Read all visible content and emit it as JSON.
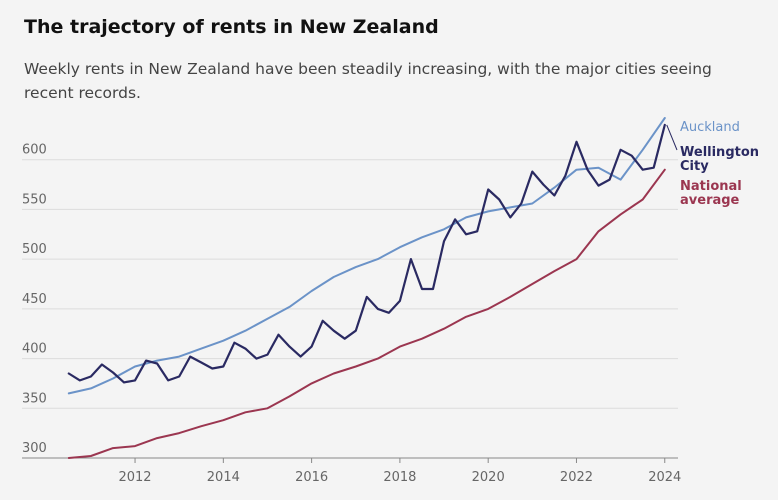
{
  "header": {
    "title": "The trajectory of rents in New Zealand",
    "subtitle": "Weekly rents in New Zealand have been steadily increasing, with the major cities seeing recent records."
  },
  "colors": {
    "auckland": "#6b93c8",
    "wellington": "#2a2a62",
    "national": "#9b3650",
    "grid": "#dcdcdc",
    "axis": "#666666"
  },
  "chart_data": {
    "type": "line",
    "title": "The trajectory of rents in New Zealand",
    "xlabel": "",
    "ylabel": "",
    "xlim": [
      2010.3,
      2024.3
    ],
    "ylim": [
      300,
      650
    ],
    "y_ticks": [
      300,
      350,
      400,
      450,
      500,
      550,
      600
    ],
    "x_ticks": [
      2012,
      2014,
      2016,
      2018,
      2020,
      2022,
      2024
    ],
    "grid": true,
    "legend": "labels at line ends (right)",
    "series": [
      {
        "name": "Auckland",
        "color": "#6b93c8",
        "x": [
          2010.5,
          2011,
          2011.5,
          2012,
          2012.5,
          2013,
          2013.5,
          2014,
          2014.5,
          2015,
          2015.5,
          2016,
          2016.5,
          2017,
          2017.5,
          2018,
          2018.5,
          2019,
          2019.5,
          2020,
          2020.5,
          2021,
          2021.5,
          2022,
          2022.5,
          2023,
          2023.5,
          2024
        ],
        "y": [
          365,
          370,
          380,
          392,
          398,
          402,
          410,
          418,
          428,
          440,
          452,
          468,
          482,
          492,
          500,
          512,
          522,
          530,
          542,
          548,
          552,
          556,
          572,
          590,
          592,
          580,
          610,
          642
        ]
      },
      {
        "name": "Wellington City",
        "color": "#2a2a62",
        "x": [
          2010.5,
          2010.75,
          2011,
          2011.25,
          2011.5,
          2011.75,
          2012,
          2012.25,
          2012.5,
          2012.75,
          2013,
          2013.25,
          2013.5,
          2013.75,
          2014,
          2014.25,
          2014.5,
          2014.75,
          2015,
          2015.25,
          2015.5,
          2015.75,
          2016,
          2016.25,
          2016.5,
          2016.75,
          2017,
          2017.25,
          2017.5,
          2017.75,
          2018,
          2018.25,
          2018.5,
          2018.75,
          2019,
          2019.25,
          2019.5,
          2019.75,
          2020,
          2020.25,
          2020.5,
          2020.75,
          2021,
          2021.25,
          2021.5,
          2021.75,
          2022,
          2022.25,
          2022.5,
          2022.75,
          2023,
          2023.25,
          2023.5,
          2023.75,
          2024
        ],
        "y": [
          385,
          378,
          382,
          394,
          386,
          376,
          378,
          398,
          395,
          378,
          382,
          402,
          396,
          390,
          392,
          416,
          410,
          400,
          404,
          424,
          412,
          402,
          412,
          438,
          428,
          420,
          428,
          462,
          450,
          446,
          458,
          500,
          470,
          470,
          518,
          540,
          525,
          528,
          570,
          560,
          542,
          556,
          588,
          575,
          564,
          584,
          618,
          590,
          574,
          580,
          610,
          604,
          590,
          592,
          635
        ]
      },
      {
        "name": "National average",
        "color": "#9b3650",
        "x": [
          2010.5,
          2011,
          2011.5,
          2012,
          2012.5,
          2013,
          2013.5,
          2014,
          2014.5,
          2015,
          2015.5,
          2016,
          2016.5,
          2017,
          2017.5,
          2018,
          2018.5,
          2019,
          2019.5,
          2020,
          2020.5,
          2021,
          2021.5,
          2022,
          2022.5,
          2023,
          2023.5,
          2024
        ],
        "y": [
          300,
          302,
          310,
          312,
          320,
          325,
          332,
          338,
          346,
          350,
          362,
          375,
          385,
          392,
          400,
          412,
          420,
          430,
          442,
          450,
          462,
          475,
          488,
          500,
          528,
          545,
          560,
          590
        ]
      }
    ]
  }
}
